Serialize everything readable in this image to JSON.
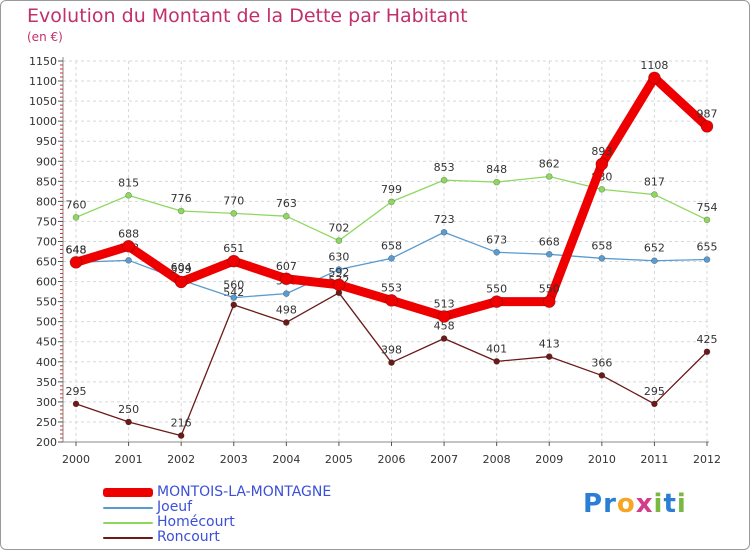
{
  "title": "Evolution du Montant de la Dette par Habitant",
  "subtitle": "(en €)",
  "brand": {
    "letters": [
      "P",
      "r",
      "o",
      "x",
      "i",
      "t",
      "i"
    ],
    "colors": [
      "#2a7fd4",
      "#2a7fd4",
      "#f5a623",
      "#d43b8a",
      "#7ab843",
      "#2a7fd4",
      "#7ab843"
    ]
  },
  "chart_data": {
    "type": "line",
    "x": [
      "2000",
      "2001",
      "2002",
      "2003",
      "2004",
      "2005",
      "2006",
      "2007",
      "2008",
      "2009",
      "2010",
      "2011",
      "2012"
    ],
    "ylim": [
      200,
      1150
    ],
    "yticks": [
      200,
      250,
      300,
      350,
      400,
      450,
      500,
      550,
      600,
      650,
      700,
      750,
      800,
      850,
      900,
      950,
      1000,
      1050,
      1100,
      1150
    ],
    "grid": true,
    "series": [
      {
        "name": "Roncourt",
        "color": "#6b1a1a",
        "values": [
          295,
          250,
          216,
          542,
          498,
          572,
          398,
          458,
          401,
          413,
          366,
          295,
          425
        ]
      },
      {
        "name": "Homécourt",
        "color": "#8fd860",
        "values": [
          760,
          815,
          776,
          770,
          763,
          702,
          799,
          853,
          848,
          862,
          830,
          817,
          754
        ]
      },
      {
        "name": "Joeuf",
        "color": "#5a9bd0",
        "values": [
          648,
          653,
          604,
          560,
          570,
          630,
          658,
          723,
          673,
          668,
          658,
          652,
          655
        ]
      },
      {
        "name": "MONTOIS-LA-MONTAGNE",
        "color": "#ee0000",
        "values": [
          648,
          688,
          599,
          651,
          607,
          592,
          553,
          513,
          550,
          550,
          893,
          1108,
          987
        ]
      }
    ],
    "legend_order": [
      "MONTOIS-LA-MONTAGNE",
      "Joeuf",
      "Homécourt",
      "Roncourt"
    ]
  }
}
